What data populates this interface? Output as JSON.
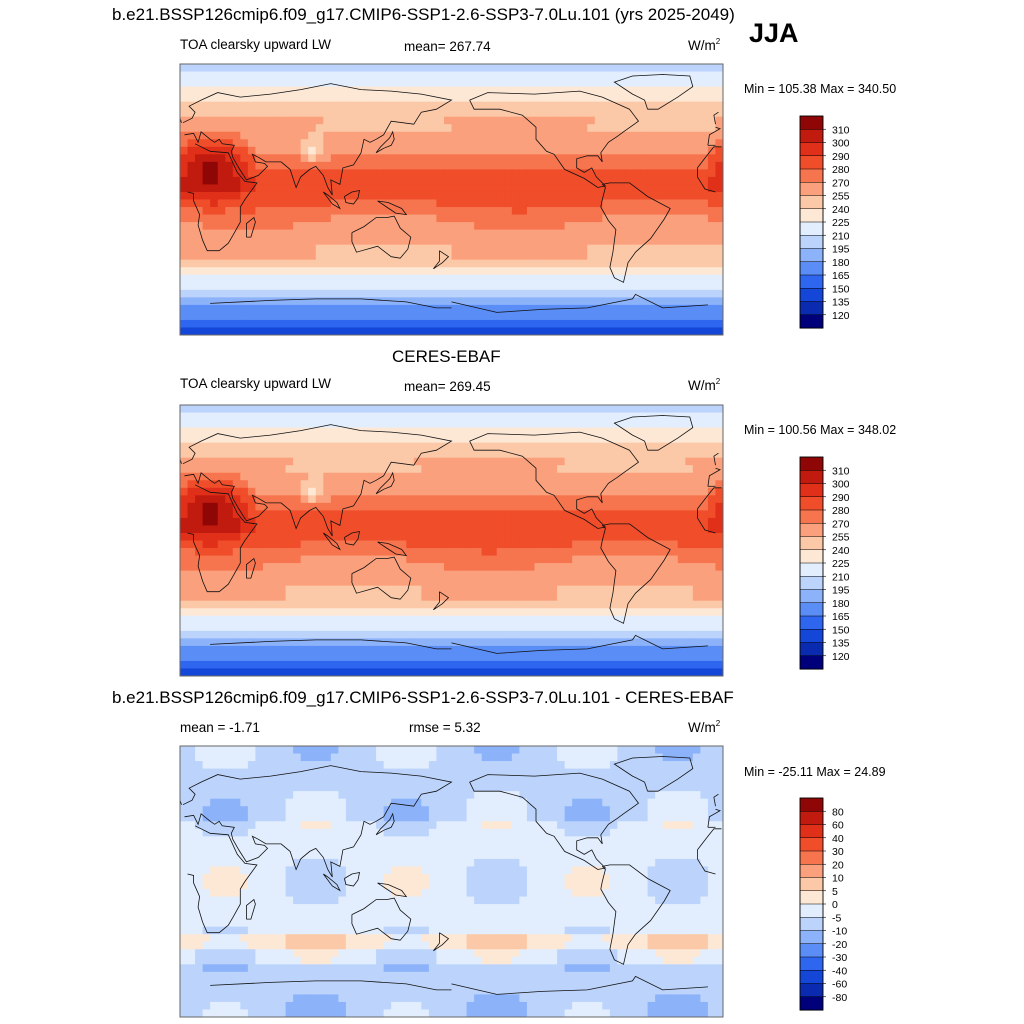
{
  "season": "JJA",
  "top_title": "b.e21.BSSP126cmip6.f09_g17.CMIP6-SSP1-2.6-SSP3-7.0Lu.101 (yrs 2025-2049)",
  "obs_title": "CERES-EBAF",
  "diff_title": "b.e21.BSSP126cmip6.f09_g17.CMIP6-SSP1-2.6-SSP3-7.0Lu.101 - CERES-EBAF",
  "colors": {
    "abs_levels": [
      "#00007a",
      "#0a2bb0",
      "#1446d8",
      "#2e66f0",
      "#5a8ef6",
      "#8cb2fa",
      "#bcd4fc",
      "#e2eefe",
      "#fde8d6",
      "#fcc9a8",
      "#fba07c",
      "#f6744e",
      "#f04d2a",
      "#e0301a",
      "#c11a0f",
      "#8e0706"
    ],
    "diff_levels": [
      "#00007a",
      "#0a2bb0",
      "#1446d8",
      "#2e66f0",
      "#5a8ef6",
      "#8cb2fa",
      "#bcd4fc",
      "#e2eefe",
      "#fde8d6",
      "#fcc9a8",
      "#fba07c",
      "#f6744e",
      "#f04d2a",
      "#e0301a",
      "#c11a0f",
      "#8e0706"
    ]
  },
  "panels": [
    {
      "name": "model",
      "variable": "TOA clearsky upward LW",
      "mean_label": "mean= 267.74",
      "units": "W/m",
      "units_sup": "2",
      "minmax": "Min = 105.38 Max = 340.50",
      "colorbar_ticks": [
        "310",
        "300",
        "290",
        "280",
        "270",
        "255",
        "240",
        "225",
        "210",
        "195",
        "180",
        "165",
        "150",
        "135",
        "120"
      ]
    },
    {
      "name": "obs",
      "variable": "TOA clearsky upward LW",
      "mean_label": "mean= 269.45",
      "units": "W/m",
      "units_sup": "2",
      "minmax": "Min = 100.56 Max = 348.02",
      "colorbar_ticks": [
        "310",
        "300",
        "290",
        "280",
        "270",
        "255",
        "240",
        "225",
        "210",
        "195",
        "180",
        "165",
        "150",
        "135",
        "120"
      ]
    },
    {
      "name": "diff",
      "mean_label": "mean =  -1.71",
      "rmse_label": "rmse =   5.32",
      "units": "W/m",
      "units_sup": "2",
      "minmax": "Min = -25.11 Max =  24.89",
      "colorbar_ticks": [
        "80",
        "60",
        "40",
        "30",
        "20",
        "10",
        "5",
        "0",
        "-5",
        "-10",
        "-20",
        "-30",
        "-40",
        "-60",
        "-80"
      ]
    }
  ],
  "chart_data": [
    {
      "type": "heatmap",
      "title": "b.e21.BSSP126cmip6.f09_g17.CMIP6-SSP1-2.6-SSP3-7.0Lu.101 (yrs 2025-2049)",
      "variable": "TOA clearsky upward LW",
      "season": "JJA",
      "units": "W/m2",
      "mean": 267.74,
      "min": 105.38,
      "max": 340.5,
      "contour_levels": [
        120,
        135,
        150,
        165,
        180,
        195,
        210,
        225,
        240,
        255,
        270,
        280,
        290,
        300,
        310
      ]
    },
    {
      "type": "heatmap",
      "title": "CERES-EBAF",
      "variable": "TOA clearsky upward LW",
      "units": "W/m2",
      "mean": 269.45,
      "min": 100.56,
      "max": 348.02,
      "contour_levels": [
        120,
        135,
        150,
        165,
        180,
        195,
        210,
        225,
        240,
        255,
        270,
        280,
        290,
        300,
        310
      ]
    },
    {
      "type": "heatmap",
      "title": "b.e21.BSSP126cmip6.f09_g17.CMIP6-SSP1-2.6-SSP3-7.0Lu.101 - CERES-EBAF",
      "units": "W/m2",
      "mean": -1.71,
      "rmse": 5.32,
      "min": -25.11,
      "max": 24.89,
      "contour_levels": [
        -80,
        -60,
        -40,
        -30,
        -20,
        -10,
        -5,
        0,
        5,
        10,
        20,
        30,
        40,
        60,
        80
      ]
    }
  ]
}
